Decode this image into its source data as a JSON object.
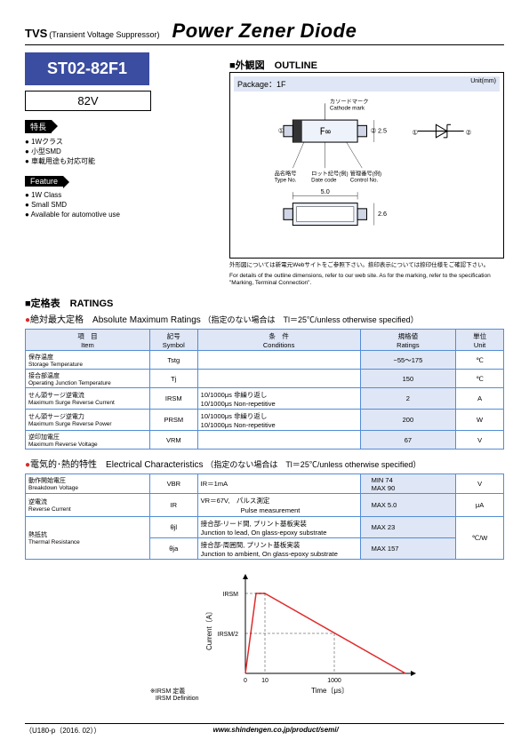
{
  "header": {
    "tvs": "TVS",
    "tvs_sub": "(Transient Voltage Suppressor)",
    "title": "Power Zener Diode"
  },
  "part": {
    "number": "ST02-82F1",
    "voltage": "82V",
    "box_bg": "#3b4da0"
  },
  "features_jp": {
    "tag": "特長",
    "items": [
      "1Wクラス",
      "小型SMD",
      "車載用途も対応可能"
    ]
  },
  "features_en": {
    "tag": "Feature",
    "items": [
      "1W Class",
      "Small SMD",
      "Available for automotive use"
    ]
  },
  "outline": {
    "hdr": "■外観図　OUTLINE",
    "pkg_label": "Package：1F",
    "unit_label": "Unit(mm)",
    "cathode_jp": "カソードマーク",
    "cathode_en": "Cathode mark",
    "typeno_jp": "品名略号",
    "typeno_en": "Type No.",
    "date_jp": "ロット記号(例)",
    "date_en": "Date code",
    "ctrl_jp": "管理番号(例)",
    "ctrl_en": "Control No.",
    "dim_w": "5.0",
    "dim_h": "2.6",
    "dim_t": "2.5",
    "note_jp": "外形図については新電元Webサイトをご参照下さい。捺印表示については捺印仕様をご確認下さい。",
    "note_en": "For details of the outline dimensions, refer to our web site. As for the marking, refer to the specification \"Marking, Terminal Connection\"."
  },
  "ratings_section": {
    "hdr_sq": "■定格表",
    "hdr_en": "RATINGS",
    "sub_label": "絶対最大定格　Absolute Maximum Ratings",
    "cond": "（指定のない場合は　Tl＝25℃/unless otherwise specified）"
  },
  "ratings_table": {
    "cols": {
      "item": "項　目\nItem",
      "symbol": "記号\nSymbol",
      "cond": "条　件\nConditions",
      "rating": "規格値\nRatings",
      "unit": "単位\nUnit"
    },
    "rows": [
      {
        "item_jp": "保存温度",
        "item_en": "Storage Temperature",
        "sym": "Tstg",
        "cond": "",
        "val": "−55〜175",
        "unit": "℃"
      },
      {
        "item_jp": "接合部温度",
        "item_en": "Operating Junction Temperature",
        "sym": "Tj",
        "cond": "",
        "val": "150",
        "unit": "℃"
      },
      {
        "item_jp": "せん頭サージ逆電流",
        "item_en": "Maximum Surge Reverse Current",
        "sym": "IRSM",
        "cond": "10/1000μs 非繰り返し\n10/1000μs Non-repetitive",
        "val": "2",
        "unit": "A"
      },
      {
        "item_jp": "せん頭サージ逆電力",
        "item_en": "Maximum Surge Reverse Power",
        "sym": "PRSM",
        "cond": "10/1000μs 非繰り返し\n10/1000μs Non-repetitive",
        "val": "200",
        "unit": "W"
      },
      {
        "item_jp": "逆印加電圧",
        "item_en": "Maximum Reverse Voltage",
        "sym": "VRM",
        "cond": "",
        "val": "67",
        "unit": "V"
      }
    ]
  },
  "elec_section": {
    "sub_label": "電気的･熱的特性　Electrical Characteristics",
    "cond": "（指定のない場合は　Tl＝25℃/unless otherwise specified）"
  },
  "elec_table": {
    "rows": [
      {
        "item_jp": "動作開始電圧",
        "item_en": "Breakdown Voltage",
        "sym": "VBR",
        "cond": "IR＝1mA",
        "tag": "MIN  74\nMAX  90",
        "unit": "V",
        "rowspan": 1
      },
      {
        "item_jp": "逆電流",
        "item_en": "Reverse Current",
        "sym": "IR",
        "cond": "VR＝67V,　パルス測定\n　　　　　　Pulse measurement",
        "tag": "MAX  5.0",
        "unit": "μA",
        "rowspan": 1
      },
      {
        "item_jp": "熱抵抗",
        "item_en": "Thermal Resistance",
        "sym": "θjl",
        "cond": "接合部-リード間, プリント基板実装\nJunction to lead, On glass-epoxy substrate",
        "tag": "MAX  23",
        "unit": "℃/W",
        "rowspan": 2
      },
      {
        "item_jp": "",
        "item_en": "",
        "sym": "θja",
        "cond": "接合部-周囲間, プリント基板実装\nJunction to ambient, On glass-epoxy substrate",
        "tag": "MAX  157",
        "unit": "",
        "rowspan": 0
      }
    ]
  },
  "chart": {
    "note_jp": "※IRSM 定義",
    "note_en": "IRSM Definition",
    "ylabel": "Current〔A〕",
    "xlabel": "Time〔μs〕",
    "y1": "IRSM",
    "y2": "IRSM/2",
    "xticks": [
      "0",
      "10",
      "1000"
    ],
    "line_color": "#e02b2b",
    "grid_color": "#000000"
  },
  "footer": {
    "rev": "（U180-p（2016. 02））",
    "url": "www.shindengen.co.jp/product/semi/"
  }
}
